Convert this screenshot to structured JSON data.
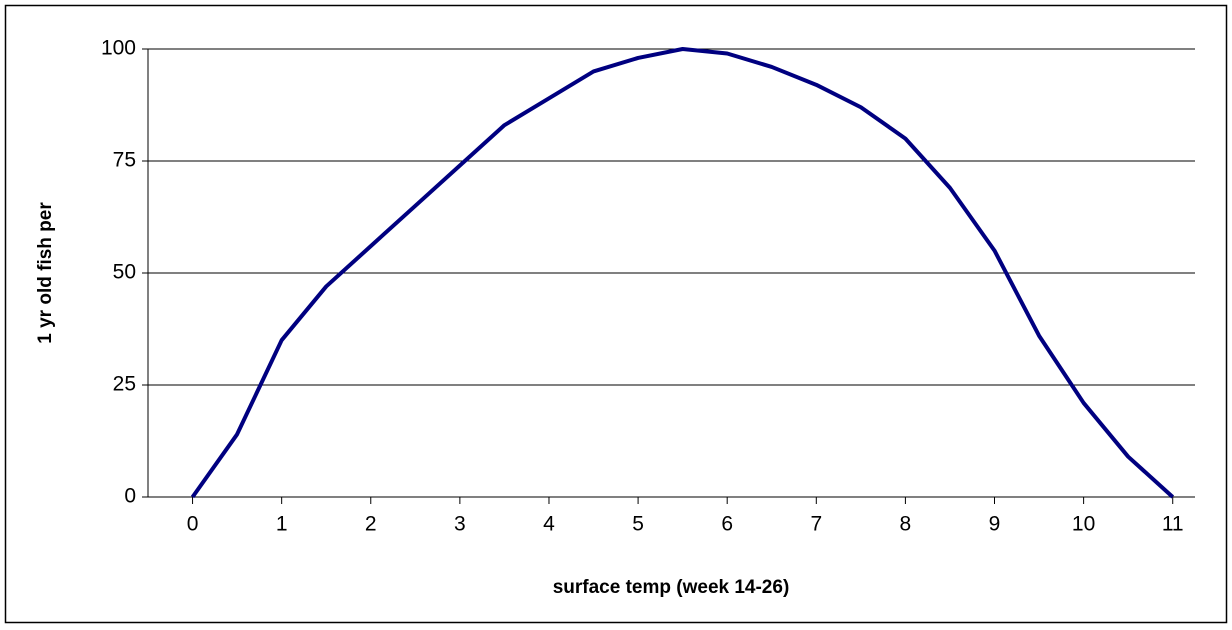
{
  "chart_data": {
    "type": "line",
    "x_label": "surface temp (week 14-26)",
    "y_label": "1 yr old fish per",
    "x": [
      0,
      0.5,
      1,
      1.5,
      2,
      2.5,
      3,
      3.5,
      4,
      4.5,
      5,
      5.5,
      6,
      6.5,
      7,
      7.5,
      8,
      8.5,
      9,
      9.5,
      10,
      10.5,
      11
    ],
    "series": [
      {
        "color": "#000080",
        "values": [
          0,
          14,
          35,
          47,
          56,
          65,
          74,
          83,
          89,
          95,
          98,
          100,
          99,
          96,
          92,
          87,
          80,
          69,
          55,
          36,
          21,
          9,
          0
        ]
      }
    ],
    "xlim": [
      -0.5,
      11.25
    ],
    "xticks": [
      0,
      1,
      2,
      3,
      4,
      5,
      6,
      7,
      8,
      9,
      10,
      11
    ],
    "ylim": [
      0,
      100
    ],
    "yticks": [
      0,
      25,
      50,
      75,
      100
    ],
    "grid": true
  }
}
